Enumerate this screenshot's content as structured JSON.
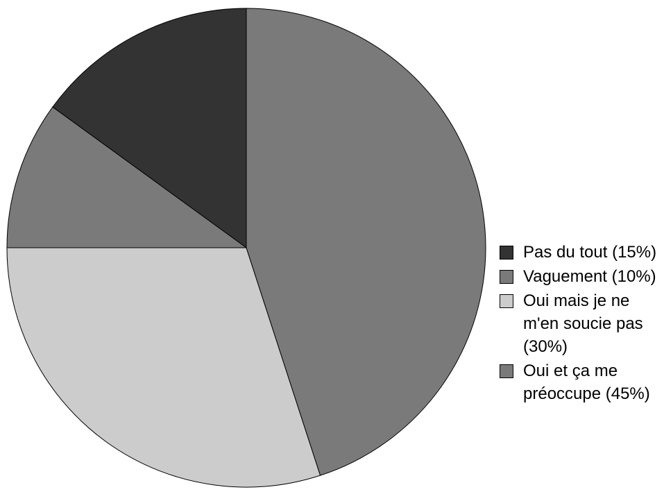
{
  "chart_data": {
    "type": "pie",
    "series": [
      {
        "name": "Pas du tout (15%)",
        "color": "#333333",
        "values": [
          15
        ]
      },
      {
        "name": "Vaguement (10%)",
        "color": "#7a7a7a",
        "values": [
          10
        ]
      },
      {
        "name": "Oui mais je ne m'en soucie pas (30%)",
        "color": "#cccccc",
        "values": [
          30
        ]
      },
      {
        "name": "Oui et ça me préoccupe (45%)",
        "color": "#7a7a7a",
        "values": [
          45
        ]
      }
    ],
    "legend": "right"
  }
}
